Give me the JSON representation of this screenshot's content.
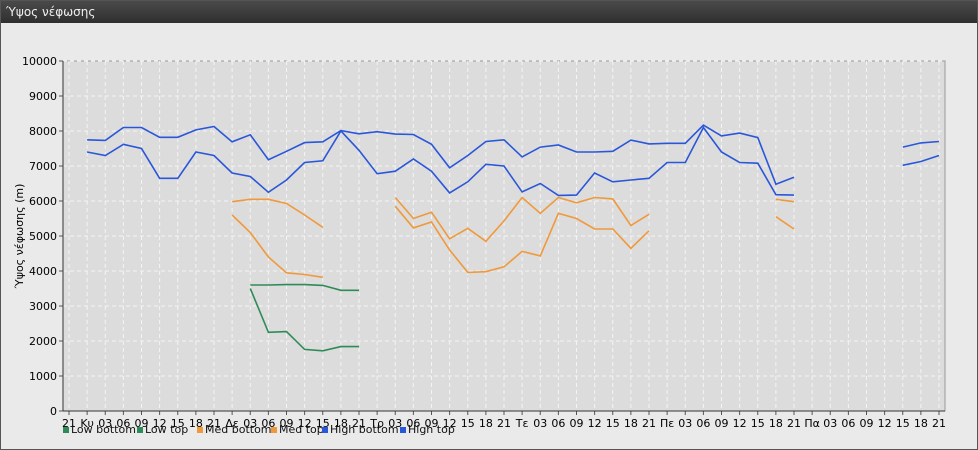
{
  "window": {
    "title": "Ύψος νέφωσης"
  },
  "chart_data": {
    "type": "line",
    "ylabel": "Ύψος νέφωσης (m)",
    "ylim": [
      0,
      10000
    ],
    "yticks": [
      0,
      1000,
      2000,
      3000,
      4000,
      5000,
      6000,
      7000,
      8000,
      9000,
      10000
    ],
    "grid": true,
    "legend_position": "bottom-left",
    "categories": [
      "21",
      "Κυ",
      "03",
      "06",
      "09",
      "12",
      "15",
      "18",
      "21",
      "Δε",
      "03",
      "06",
      "09",
      "12",
      "15",
      "18",
      "21",
      "Τρ",
      "03",
      "06",
      "09",
      "12",
      "15",
      "18",
      "21",
      "Τε",
      "03",
      "06",
      "09",
      "12",
      "15",
      "18",
      "21",
      "Πε",
      "03",
      "06",
      "09",
      "12",
      "15",
      "18",
      "21",
      "Πα",
      "03",
      "06",
      "09",
      "12",
      "15",
      "18",
      "21"
    ],
    "series": [
      {
        "name": "Low bottom",
        "color": "#2e8b57",
        "values": [
          null,
          null,
          null,
          null,
          null,
          null,
          null,
          null,
          null,
          null,
          3500,
          2250,
          2270,
          1760,
          1720,
          1840,
          1840,
          null,
          null,
          null,
          null,
          null,
          null,
          null,
          null,
          null,
          null,
          null,
          null,
          null,
          null,
          null,
          null,
          null,
          null,
          null,
          null,
          null,
          null,
          null,
          null,
          null,
          null,
          null,
          null,
          null,
          null,
          null,
          null
        ]
      },
      {
        "name": "Low top",
        "color": "#2e8b57",
        "values": [
          null,
          null,
          null,
          null,
          null,
          null,
          null,
          null,
          null,
          null,
          3600,
          3600,
          3610,
          3610,
          3590,
          3450,
          3450,
          null,
          null,
          null,
          null,
          null,
          null,
          null,
          null,
          null,
          null,
          null,
          null,
          null,
          null,
          null,
          null,
          null,
          null,
          null,
          null,
          null,
          null,
          null,
          null,
          null,
          null,
          null,
          null,
          null,
          null,
          null,
          null
        ]
      },
      {
        "name": "Med bottom",
        "color": "#f0993a",
        "values": [
          null,
          null,
          null,
          null,
          null,
          null,
          null,
          null,
          null,
          5600,
          5100,
          4400,
          3950,
          3900,
          3820,
          null,
          null,
          null,
          5850,
          5230,
          5400,
          4600,
          3960,
          3980,
          4120,
          4560,
          4430,
          5650,
          5500,
          5200,
          5200,
          4650,
          5150,
          null,
          null,
          null,
          null,
          null,
          null,
          5550,
          5200,
          null,
          null,
          null,
          null,
          null,
          null,
          null,
          null
        ]
      },
      {
        "name": "Med top",
        "color": "#f0993a",
        "values": [
          null,
          null,
          null,
          null,
          null,
          null,
          null,
          null,
          null,
          5980,
          6050,
          6050,
          5930,
          5600,
          5250,
          null,
          null,
          null,
          6100,
          5500,
          5680,
          4920,
          5220,
          4850,
          5430,
          6100,
          5650,
          6100,
          5950,
          6100,
          6060,
          5300,
          5620,
          null,
          null,
          null,
          null,
          null,
          null,
          6050,
          5980,
          null,
          null,
          null,
          null,
          null,
          null,
          null,
          null
        ]
      },
      {
        "name": "High bottom",
        "color": "#2a56d9",
        "values": [
          null,
          7400,
          7300,
          7620,
          7500,
          6650,
          6650,
          7400,
          7300,
          6800,
          6700,
          6250,
          6600,
          7100,
          7150,
          8000,
          7450,
          6780,
          6850,
          7200,
          6850,
          6230,
          6550,
          7050,
          7000,
          6260,
          6500,
          6160,
          6170,
          6800,
          6550,
          6600,
          6650,
          7100,
          7100,
          8100,
          7400,
          7100,
          7080,
          6180,
          6170,
          null,
          null,
          null,
          null,
          null,
          7020,
          7130,
          7300
        ]
      },
      {
        "name": "High top",
        "color": "#2a56d9",
        "values": [
          null,
          7750,
          7730,
          8100,
          8100,
          7820,
          7820,
          8030,
          8130,
          7690,
          7890,
          7180,
          7420,
          7670,
          7690,
          8010,
          7920,
          7980,
          7910,
          7900,
          7620,
          6950,
          7300,
          7700,
          7750,
          7260,
          7540,
          7600,
          7400,
          7400,
          7420,
          7740,
          7630,
          7650,
          7650,
          8170,
          7860,
          7940,
          7810,
          6480,
          6680,
          null,
          null,
          null,
          null,
          null,
          7540,
          7660,
          7700
        ]
      }
    ]
  }
}
